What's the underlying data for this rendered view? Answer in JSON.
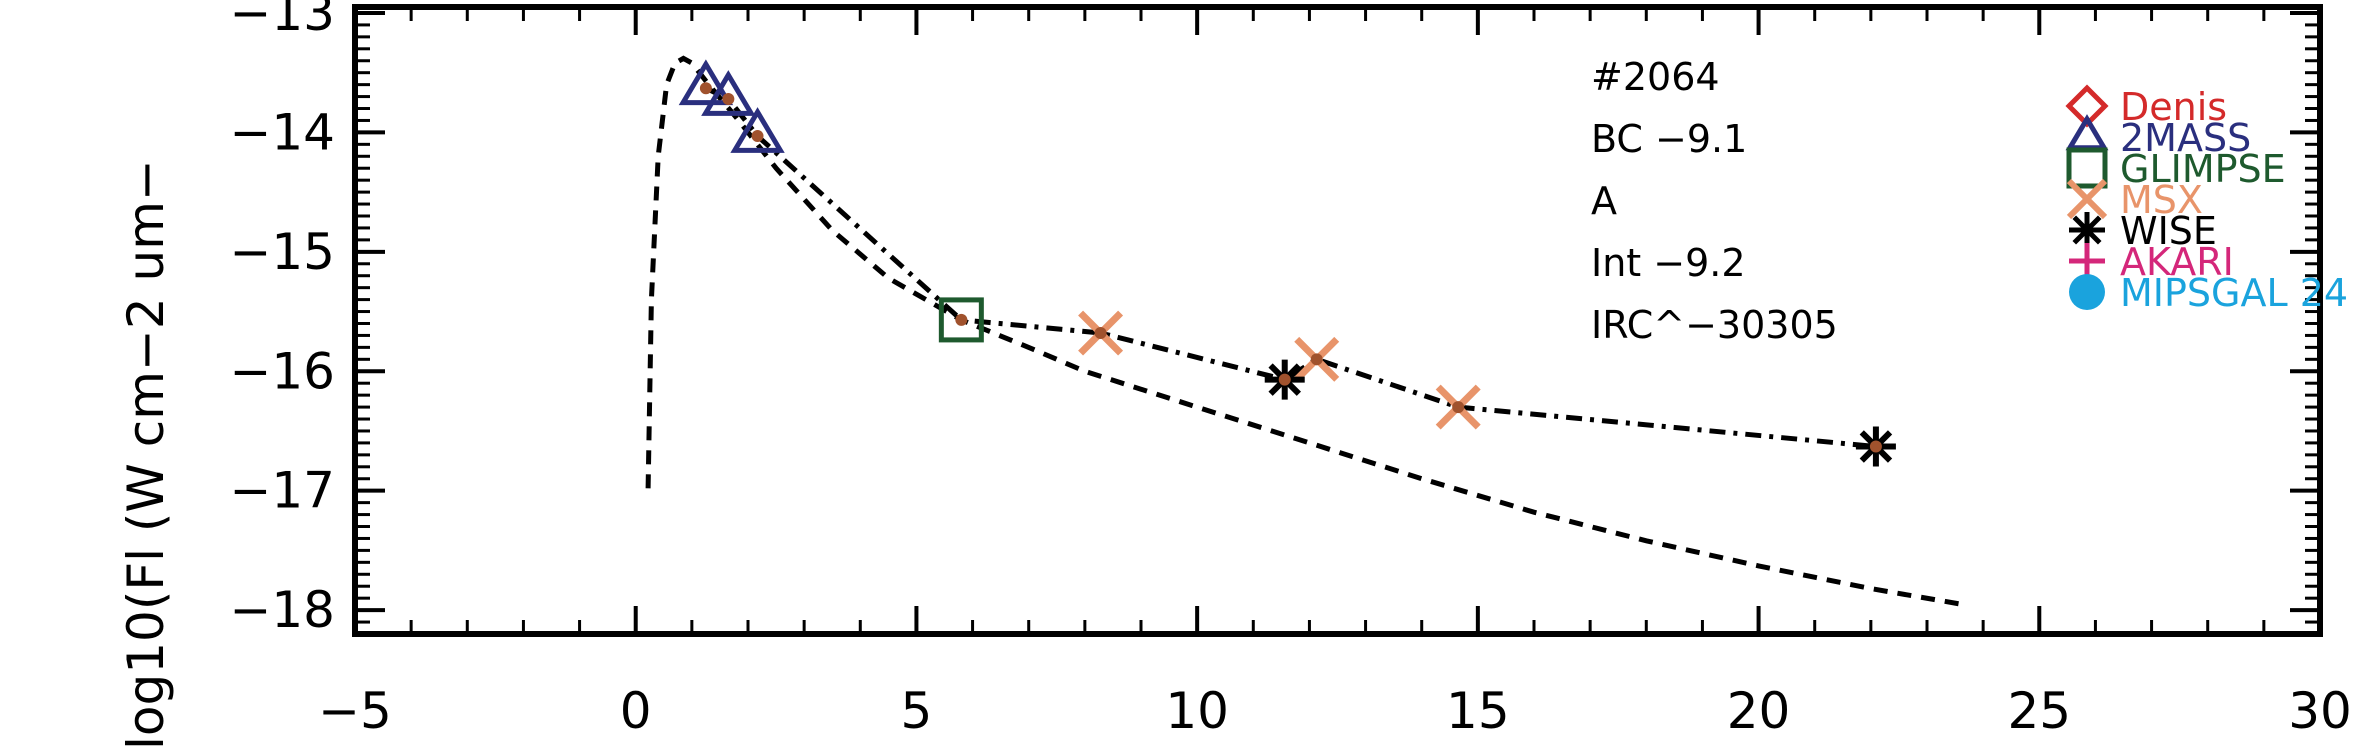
{
  "chart_data": {
    "type": "scatter",
    "title": "",
    "xlabel": "",
    "ylabel": "log10(Fl (W cm−2 um−",
    "xlim": [
      -5,
      30
    ],
    "ylim": [
      -18.2,
      -12.95
    ],
    "x_ticks": [
      -5,
      0,
      5,
      10,
      15,
      20,
      25,
      30
    ],
    "x_tick_labels": [
      "−5",
      "0",
      "5",
      "10",
      "15",
      "20",
      "25",
      "30"
    ],
    "y_ticks": [
      -18,
      -17,
      -16,
      -15,
      -14,
      -13
    ],
    "y_tick_labels": [
      "−18",
      "−17",
      "−16",
      "−15",
      "−14",
      "−13"
    ],
    "grid": false,
    "annotations": [
      "#2064",
      "BC  −9.1",
      "A",
      "Int  −9.2",
      "IRC^−30305"
    ],
    "legend": {
      "placement": "top-right",
      "entries": [
        {
          "name": "Denis",
          "color": "#d42a2a",
          "marker": "diamond"
        },
        {
          "name": "2MASS",
          "color": "#2a2f7e",
          "marker": "triangle"
        },
        {
          "name": "GLIMPSE",
          "color": "#1e5a2e",
          "marker": "square"
        },
        {
          "name": "MSX",
          "color": "#e8946a",
          "marker": "x"
        },
        {
          "name": "WISE",
          "color": "#000000",
          "marker": "asterisk"
        },
        {
          "name": "AKARI",
          "color": "#d4277a",
          "marker": "plus"
        },
        {
          "name": "MIPSGAL 24",
          "color": "#1aa3dd",
          "marker": "circle"
        }
      ]
    },
    "series": [
      {
        "marker": "triangle",
        "color": "#2a2f7e",
        "x": [
          1.25,
          1.65,
          2.17
        ],
        "y": [
          -13.63,
          -13.72,
          -14.03
        ]
      },
      {
        "marker": "square",
        "color": "#1e5a2e",
        "x": [
          5.8
        ],
        "y": [
          -15.57
        ]
      },
      {
        "marker": "x",
        "color": "#e8946a",
        "x": [
          8.28,
          12.13,
          14.65
        ],
        "y": [
          -15.68,
          -15.9,
          -16.3
        ]
      },
      {
        "marker": "asterisk",
        "color": "#000000",
        "x": [
          11.56,
          22.09
        ],
        "y": [
          -16.07,
          -16.63
        ]
      },
      {
        "marker": "dot",
        "color": "#a0522d",
        "x": [
          1.25,
          1.65,
          2.17,
          5.8,
          8.28,
          11.56,
          12.13,
          14.65,
          22.09
        ],
        "y": [
          -13.63,
          -13.72,
          -14.03,
          -15.57,
          -15.68,
          -16.07,
          -15.9,
          -16.3,
          -16.63
        ]
      },
      {
        "style": "dash-dot",
        "color": "#000000",
        "x": [
          1.25,
          1.65,
          2.17,
          5.8,
          8.28,
          11.56,
          12.13,
          14.65,
          22.09
        ],
        "y": [
          -13.63,
          -13.72,
          -14.03,
          -15.57,
          -15.68,
          -16.07,
          -15.9,
          -16.3,
          -16.63
        ]
      },
      {
        "style": "dashed",
        "color": "#000000",
        "x": [
          0.22,
          0.28,
          0.4,
          0.55,
          0.7,
          0.85,
          1.0,
          1.3,
          1.8,
          2.5,
          3.5,
          4.5,
          5.8,
          7,
          8,
          9,
          10,
          12,
          14,
          16,
          18,
          20,
          22,
          23.6
        ],
        "y": [
          -16.98,
          -15.4,
          -14.2,
          -13.6,
          -13.42,
          -13.38,
          -13.42,
          -13.6,
          -13.88,
          -14.3,
          -14.82,
          -15.22,
          -15.57,
          -15.8,
          -16.0,
          -16.15,
          -16.3,
          -16.6,
          -16.9,
          -17.18,
          -17.42,
          -17.63,
          -17.82,
          -17.95
        ]
      }
    ]
  }
}
